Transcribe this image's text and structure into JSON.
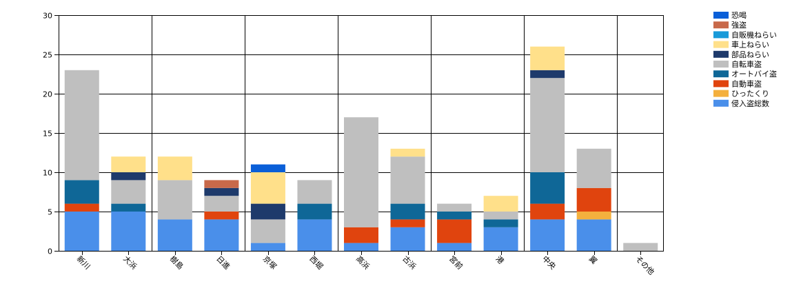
{
  "chart_data": {
    "type": "bar",
    "stacked": true,
    "categories": [
      "新川",
      "大浜",
      "樹島",
      "日進",
      "京塚",
      "西堀",
      "高浜",
      "古浜",
      "宮前",
      "港",
      "中央",
      "翼",
      "その他"
    ],
    "ylim": [
      0,
      30
    ],
    "yticks": [
      0,
      5,
      10,
      15,
      20,
      25,
      30
    ],
    "grid": true,
    "legend_position": "right",
    "series": [
      {
        "name": "侵入盗総数",
        "color": "#4a8fea",
        "values": [
          5,
          5,
          4,
          4,
          1,
          4,
          1,
          3,
          1,
          3,
          4,
          4,
          0
        ]
      },
      {
        "name": "ひったくり",
        "color": "#f4b03e",
        "values": [
          0,
          0,
          0,
          0,
          0,
          0,
          0,
          0,
          0,
          0,
          0,
          1,
          0
        ]
      },
      {
        "name": "自動車盗",
        "color": "#e0440e",
        "values": [
          1,
          0,
          0,
          1,
          0,
          0,
          2,
          1,
          3,
          0,
          2,
          3,
          0
        ]
      },
      {
        "name": "オートバイ盗",
        "color": "#0f6797",
        "values": [
          3,
          1,
          0,
          0,
          0,
          2,
          0,
          2,
          1,
          1,
          4,
          0,
          0
        ]
      },
      {
        "name": "自転車盗",
        "color": "#bfbfbf",
        "values": [
          14,
          3,
          5,
          2,
          3,
          3,
          14,
          6,
          1,
          1,
          12,
          5,
          1
        ]
      },
      {
        "name": "部品ねらい",
        "color": "#1e3a6b",
        "values": [
          0,
          1,
          0,
          1,
          2,
          0,
          0,
          0,
          0,
          0,
          1,
          0,
          0
        ]
      },
      {
        "name": "車上ねらい",
        "color": "#ffe08a",
        "values": [
          0,
          2,
          3,
          0,
          4,
          0,
          0,
          1,
          0,
          2,
          3,
          0,
          0
        ]
      },
      {
        "name": "自販機ねらい",
        "color": "#199ad9",
        "values": [
          0,
          0,
          0,
          0,
          0,
          0,
          0,
          0,
          0,
          0,
          0,
          0,
          0
        ]
      },
      {
        "name": "強盗",
        "color": "#c8694a",
        "values": [
          0,
          0,
          0,
          1,
          0,
          0,
          0,
          0,
          0,
          0,
          0,
          0,
          0
        ]
      },
      {
        "name": "恐喝",
        "color": "#0a5fd8",
        "values": [
          0,
          0,
          0,
          0,
          1,
          0,
          0,
          0,
          0,
          0,
          0,
          0,
          0
        ]
      }
    ]
  }
}
